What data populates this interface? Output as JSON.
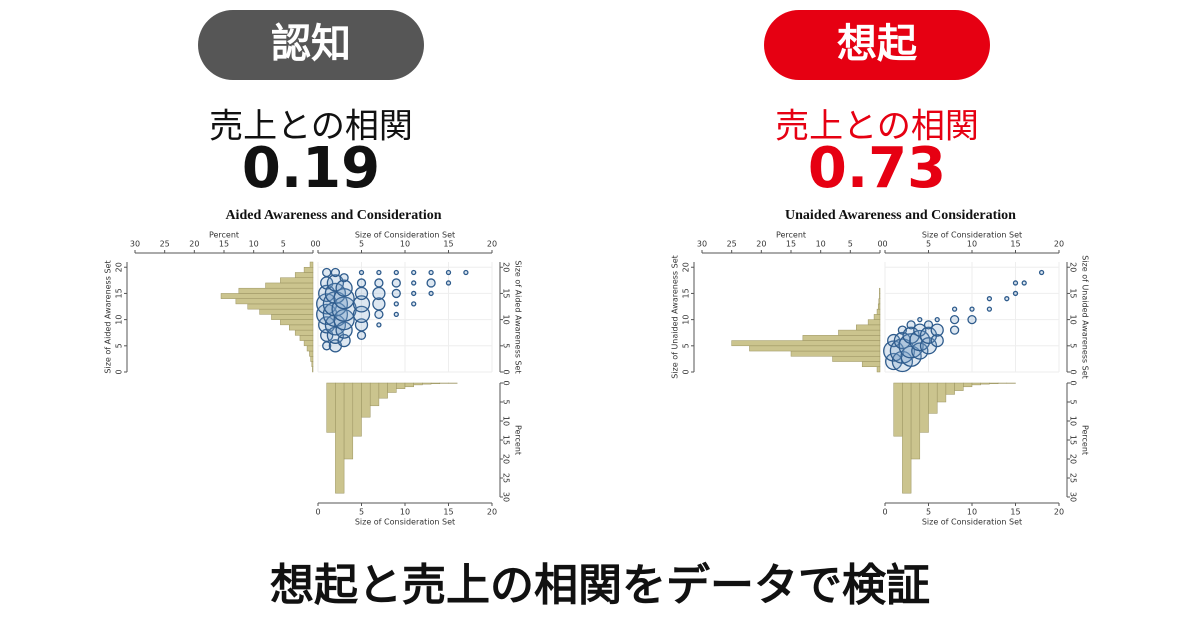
{
  "slide": {
    "left": {
      "pill": "認知",
      "caption": "売上との相関",
      "value": 0.19
    },
    "right": {
      "pill": "想起",
      "caption": "売上との相関",
      "value": 0.73
    },
    "footer": "想起と売上の相関をデータで検証"
  },
  "chart_data": [
    {
      "type": "bubble",
      "title": "Aided Awareness and Consideration",
      "xlabel": "Size of Consideration Set",
      "ylabel": "Size of Aided Awareness Set",
      "xlim": [
        0,
        20
      ],
      "xticks": [
        0,
        5,
        10,
        15,
        20
      ],
      "ylim": [
        0,
        21
      ],
      "yticks": [
        0,
        5,
        10,
        15,
        20
      ],
      "color": "#2e5b8c",
      "x": [
        1,
        1,
        1,
        1,
        1,
        1,
        1,
        1,
        2,
        2,
        2,
        2,
        2,
        2,
        2,
        2,
        3,
        3,
        3,
        3,
        3,
        3,
        3,
        5,
        5,
        5,
        5,
        5,
        5,
        5,
        7,
        7,
        7,
        7,
        7,
        7,
        9,
        9,
        9,
        9,
        9,
        11,
        11,
        11,
        11,
        13,
        13,
        13,
        15,
        15,
        17
      ],
      "y": [
        5,
        7,
        9,
        11,
        13,
        15,
        17,
        19,
        5,
        7,
        9,
        11,
        13,
        15,
        17,
        19,
        6,
        8,
        10,
        12,
        14,
        16,
        18,
        7,
        9,
        11,
        13,
        15,
        17,
        19,
        9,
        11,
        13,
        15,
        17,
        19,
        11,
        13,
        15,
        17,
        19,
        13,
        15,
        17,
        19,
        15,
        17,
        19,
        17,
        19,
        19
      ],
      "sizes": [
        2,
        3,
        4,
        5,
        5,
        4,
        3,
        2,
        3,
        4,
        5,
        6,
        6,
        5,
        4,
        2,
        3,
        4,
        5,
        6,
        5,
        4,
        2,
        2,
        3,
        4,
        4,
        3,
        2,
        1,
        1,
        2,
        3,
        3,
        2,
        1,
        1,
        1,
        2,
        2,
        1,
        1,
        1,
        1,
        1,
        1,
        2,
        1,
        1,
        1,
        1
      ],
      "left_histogram": {
        "xlabel": "Percent",
        "xlim": [
          0,
          30
        ],
        "xticks": [
          30,
          25,
          20,
          15,
          10,
          5,
          0
        ],
        "color": "#cbc48e",
        "bins": [
          0,
          1,
          2,
          3,
          4,
          5,
          6,
          7,
          8,
          9,
          10,
          11,
          12,
          13,
          14,
          15,
          16,
          17,
          18,
          19,
          20,
          21
        ],
        "values": [
          0.1,
          0.2,
          0.4,
          0.6,
          1,
          1.5,
          2.2,
          3,
          4,
          5.5,
          7,
          9,
          11,
          13,
          15.5,
          12.5,
          8,
          5.5,
          3,
          1.5,
          0.5
        ]
      },
      "bottom_histogram": {
        "ylabel": "Percent",
        "ylim": [
          0,
          30
        ],
        "yticks": [
          0,
          5,
          10,
          15,
          20,
          25,
          30
        ],
        "color": "#cbc48e",
        "bins": [
          0,
          1,
          2,
          3,
          4,
          5,
          6,
          7,
          8,
          9,
          10,
          11,
          12,
          13,
          14,
          15,
          16,
          17,
          18,
          19,
          20
        ],
        "values": [
          0,
          13,
          29,
          20,
          14,
          9,
          6,
          4,
          2.5,
          1.5,
          1,
          0.5,
          0.3,
          0.2,
          0.1,
          0.1,
          0,
          0,
          0,
          0
        ]
      }
    },
    {
      "type": "bubble",
      "title": "Unaided Awareness and Consideration",
      "xlabel": "Size of Consideration Set",
      "ylabel": "Size of Unaided Awareness Set",
      "xlim": [
        0,
        20
      ],
      "xticks": [
        0,
        5,
        10,
        15,
        20
      ],
      "ylim": [
        0,
        21
      ],
      "yticks": [
        0,
        5,
        10,
        15,
        20
      ],
      "color": "#2e5b8c",
      "x": [
        1,
        1,
        1,
        2,
        2,
        2,
        2,
        3,
        3,
        3,
        3,
        4,
        4,
        4,
        4,
        5,
        5,
        5,
        6,
        6,
        6,
        8,
        8,
        8,
        10,
        10,
        12,
        12,
        14,
        15,
        15,
        16,
        18
      ],
      "y": [
        2,
        4,
        6,
        2,
        4,
        6,
        8,
        3,
        5,
        7,
        9,
        4,
        6,
        8,
        10,
        5,
        7,
        9,
        6,
        8,
        10,
        8,
        10,
        12,
        10,
        12,
        12,
        14,
        14,
        15,
        17,
        17,
        19
      ],
      "sizes": [
        4,
        5,
        3,
        5,
        6,
        4,
        2,
        5,
        6,
        4,
        2,
        4,
        5,
        3,
        1,
        4,
        4,
        2,
        3,
        3,
        1,
        2,
        2,
        1,
        2,
        1,
        1,
        1,
        1,
        1,
        1,
        1,
        1
      ],
      "left_histogram": {
        "xlabel": "Percent",
        "xlim": [
          0,
          30
        ],
        "xticks": [
          30,
          25,
          20,
          15,
          10,
          5,
          0
        ],
        "color": "#cbc48e",
        "bins": [
          0,
          1,
          2,
          3,
          4,
          5,
          6,
          7,
          8,
          9,
          10,
          11,
          12,
          13,
          14,
          15,
          16,
          17,
          18,
          19,
          20,
          21
        ],
        "values": [
          0.5,
          3,
          8,
          15,
          22,
          25,
          13,
          7,
          4,
          2,
          1,
          0.5,
          0.3,
          0.2,
          0.1,
          0.1,
          0,
          0,
          0,
          0,
          0
        ]
      },
      "bottom_histogram": {
        "ylabel": "Percent",
        "ylim": [
          0,
          30
        ],
        "yticks": [
          0,
          5,
          10,
          15,
          20,
          25,
          30
        ],
        "color": "#cbc48e",
        "bins": [
          0,
          1,
          2,
          3,
          4,
          5,
          6,
          7,
          8,
          9,
          10,
          11,
          12,
          13,
          14,
          15,
          16,
          17,
          18,
          19,
          20
        ],
        "values": [
          0,
          14,
          29,
          20,
          13,
          8,
          5,
          3,
          2,
          1,
          0.5,
          0.3,
          0.2,
          0.1,
          0.1,
          0,
          0,
          0,
          0,
          0
        ]
      }
    }
  ]
}
